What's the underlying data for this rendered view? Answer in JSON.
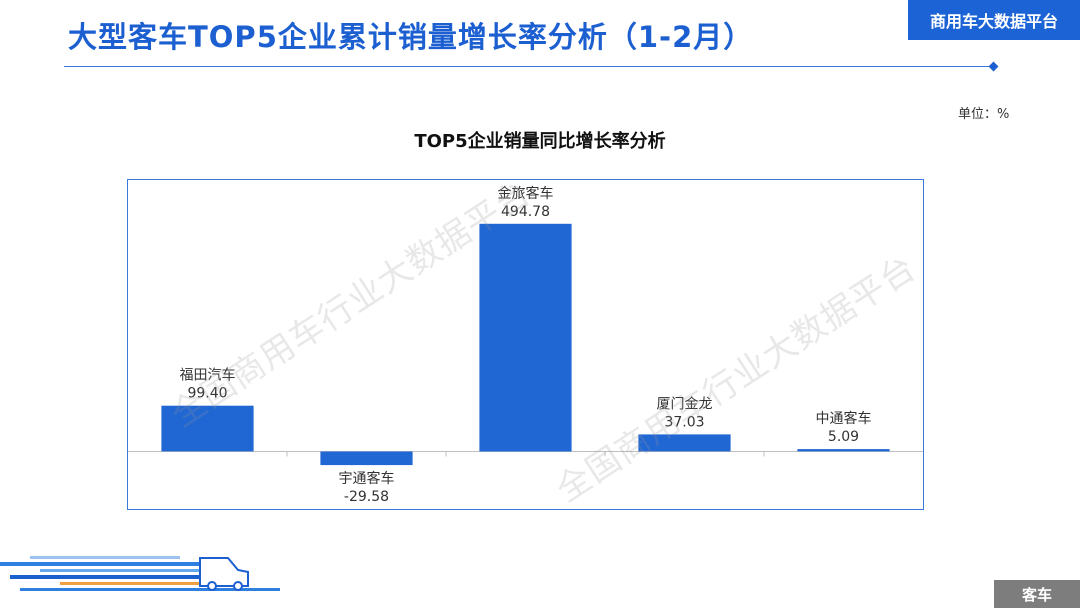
{
  "header": {
    "title": "大型客车TOP5企业累计销量增长率分析（1-2月）",
    "platform": "商用车大数据平台"
  },
  "unit": "单位：%",
  "watermark": "全国商用车行业大数据平台",
  "footer": {
    "tag": "客车"
  },
  "colors": {
    "bar": "#2167d4",
    "title": "#1c5fd1",
    "frame": "#3a7ad8"
  },
  "chart_data": {
    "type": "bar",
    "title": "TOP5企业销量同比增长率分析",
    "categories": [
      "福田汽车",
      "宇通客车",
      "金旅客车",
      "厦门金龙",
      "中通客车"
    ],
    "values": [
      99.4,
      -29.58,
      494.78,
      37.03,
      5.09
    ],
    "value_labels": [
      "99.40",
      "-29.58",
      "494.78",
      "37.03",
      "5.09"
    ],
    "ylim": [
      -125,
      590
    ],
    "grid": false,
    "legend": "none"
  }
}
